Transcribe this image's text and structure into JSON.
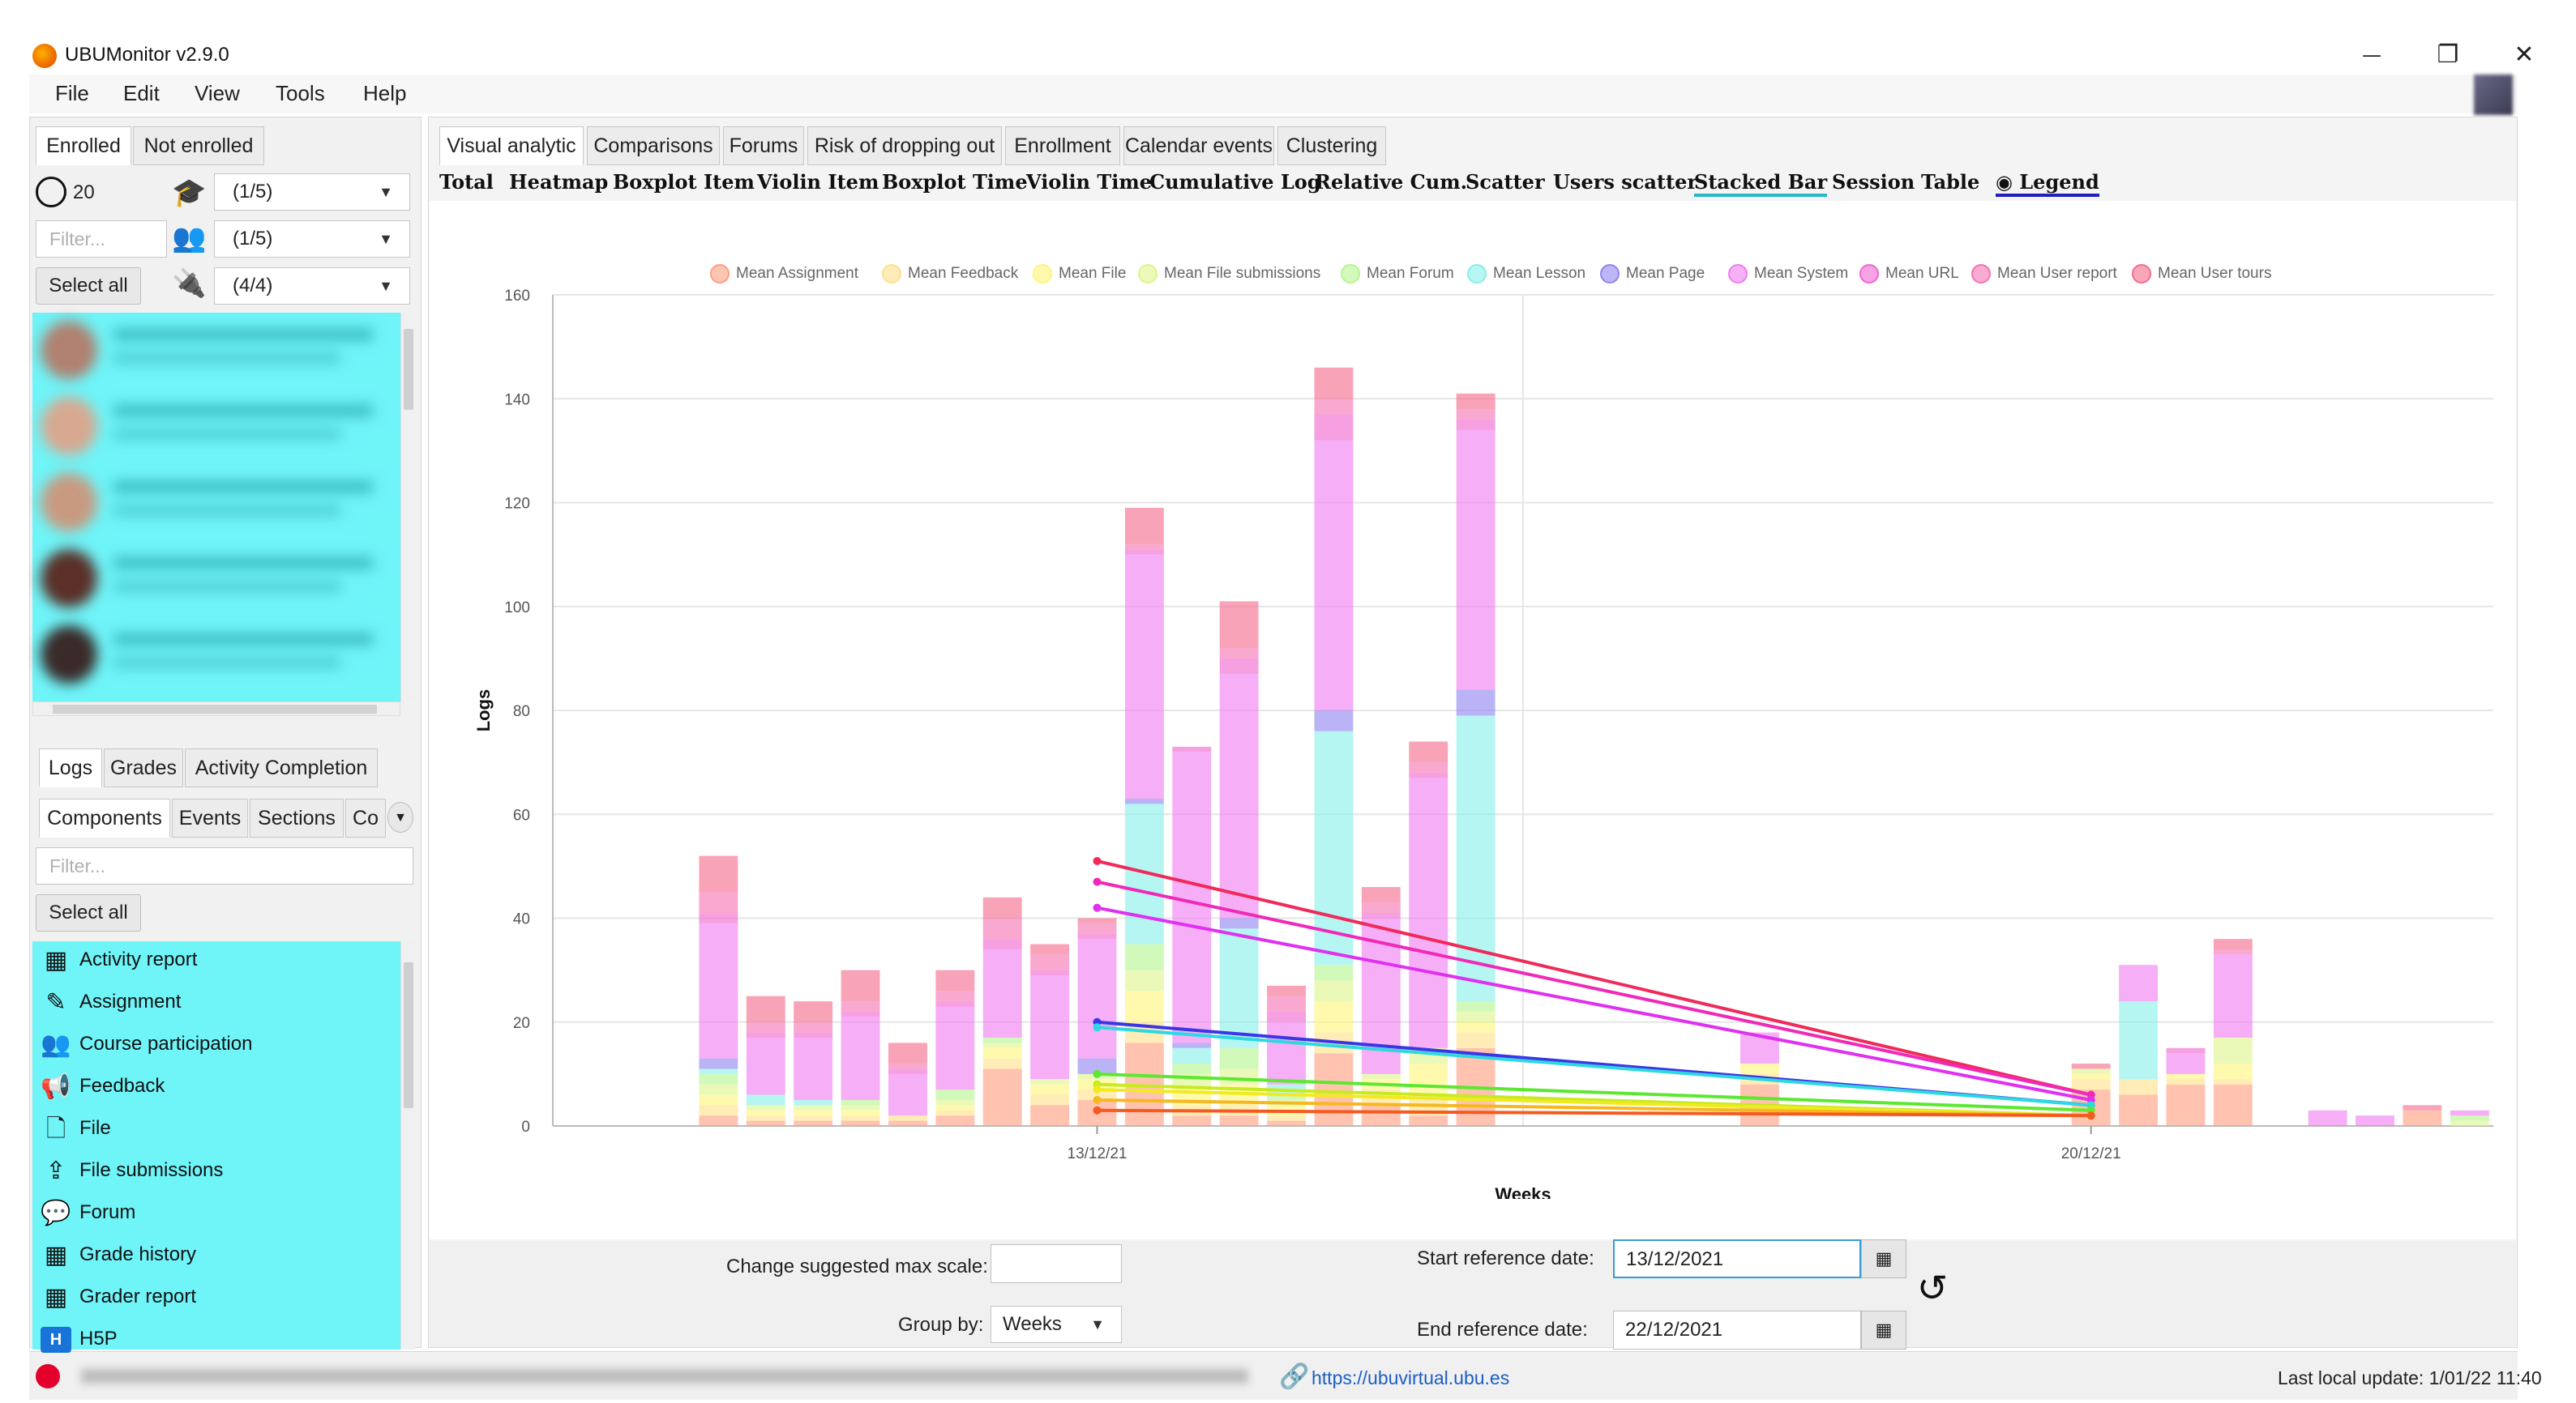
{
  "window": {
    "title": "UBUMonitor v2.9.0",
    "minimize": "—",
    "restore": "❐",
    "close": "✕"
  },
  "menu": [
    "File",
    "Edit",
    "View",
    "Tools",
    "Help"
  ],
  "left": {
    "tabs": [
      "Enrolled",
      "Not enrolled"
    ],
    "user_count": "20",
    "role_filter": "(1/5)",
    "group_filter": "(1/5)",
    "plugin_filter": "(4/4)",
    "filter_placeholder": "Filter...",
    "select_all": "Select all",
    "bottom_tabs": [
      "Logs",
      "Grades",
      "Activity Completion"
    ],
    "log_tabs": [
      "Components",
      "Events",
      "Sections",
      "Co"
    ],
    "components_filter_placeholder": "Filter...",
    "components_select_all": "Select all",
    "components": [
      {
        "label": "Activity report",
        "icon": "table-icon"
      },
      {
        "label": "Assignment",
        "icon": "assignment-icon"
      },
      {
        "label": "Course participation",
        "icon": "users-icon"
      },
      {
        "label": "Feedback",
        "icon": "megaphone-icon"
      },
      {
        "label": "File",
        "icon": "file-icon"
      },
      {
        "label": "File submissions",
        "icon": "upload-icon"
      },
      {
        "label": "Forum",
        "icon": "forum-icon"
      },
      {
        "label": "Grade history",
        "icon": "table-icon"
      },
      {
        "label": "Grader report",
        "icon": "table-icon"
      },
      {
        "label": "H5P",
        "icon": "h5p-icon"
      }
    ]
  },
  "main": {
    "tabs": [
      "Visual analytic",
      "Comparisons",
      "Forums",
      "Risk of dropping out",
      "Enrollment",
      "Calendar events",
      "Clustering"
    ],
    "subtabs": [
      "Total",
      "Heatmap",
      "Boxplot Item",
      "Violin Item",
      "Boxplot Time",
      "Violin Time",
      "Cumulative Log",
      "Relative Cum.",
      "Scatter",
      "Users scatter",
      "Stacked Bar",
      "Session",
      "Table",
      "Legend"
    ],
    "selected_subtab": "Stacked Bar"
  },
  "chart_data": {
    "type": "bar",
    "stacked": true,
    "ylabel": "Logs",
    "xlabel": "Weeks",
    "ylim": [
      0,
      160
    ],
    "yticks": [
      0,
      20,
      40,
      60,
      80,
      100,
      120,
      140,
      160
    ],
    "xticks": [
      "13/12/21",
      "20/12/21"
    ],
    "legend_position": "top",
    "grid": true,
    "series": [
      {
        "name": "Mean Assignment",
        "color": "#ff9e80"
      },
      {
        "name": "Mean Feedback",
        "color": "#ffe08a"
      },
      {
        "name": "Mean File",
        "color": "#fff57a"
      },
      {
        "name": "Mean File submissions",
        "color": "#ddf58c"
      },
      {
        "name": "Mean Forum",
        "color": "#b5f58f"
      },
      {
        "name": "Mean Lesson",
        "color": "#87f0ea"
      },
      {
        "name": "Mean Page",
        "color": "#8f86f0"
      },
      {
        "name": "Mean System",
        "color": "#f07cf0"
      },
      {
        "name": "Mean URL",
        "color": "#f066d0"
      },
      {
        "name": "Mean User report",
        "color": "#f573b2"
      },
      {
        "name": "Mean User tours",
        "color": "#f56b8c"
      }
    ],
    "bars": [
      {
        "day": -8,
        "stack": [
          2,
          2,
          2,
          2,
          2,
          1,
          2,
          26,
          2,
          4,
          7
        ]
      },
      {
        "day": -7,
        "stack": [
          1,
          1,
          1,
          1,
          0,
          2,
          0,
          11,
          1,
          2,
          5
        ]
      },
      {
        "day": -6,
        "stack": [
          1,
          1,
          1,
          1,
          0,
          1,
          0,
          12,
          1,
          2,
          4
        ]
      },
      {
        "day": -5,
        "stack": [
          1,
          1,
          1,
          1,
          1,
          0,
          0,
          16,
          1,
          2,
          6
        ]
      },
      {
        "day": -4,
        "stack": [
          1,
          1,
          0,
          0,
          0,
          0,
          0,
          8,
          1,
          1,
          4
        ]
      },
      {
        "day": -3,
        "stack": [
          2,
          1,
          1,
          1,
          2,
          0,
          0,
          16,
          1,
          2,
          4
        ]
      },
      {
        "day": -2,
        "stack": [
          11,
          2,
          2,
          1,
          1,
          0,
          0,
          17,
          2,
          4,
          4
        ]
      },
      {
        "day": -1,
        "stack": [
          4,
          2,
          2,
          1,
          0,
          0,
          0,
          20,
          1,
          3,
          2
        ]
      },
      {
        "day": 0,
        "stack": [
          5,
          2,
          2,
          1,
          0,
          0,
          3,
          23,
          1,
          2,
          1
        ]
      },
      {
        "day": 1,
        "stack": [
          16,
          4,
          6,
          4,
          5,
          27,
          1,
          47,
          1,
          1,
          7
        ]
      },
      {
        "day": 2,
        "stack": [
          2,
          2,
          3,
          3,
          2,
          3,
          1,
          56,
          1,
          0,
          0
        ]
      },
      {
        "day": 3,
        "stack": [
          2,
          2,
          4,
          3,
          4,
          23,
          2,
          47,
          3,
          2,
          9
        ]
      },
      {
        "day": 4,
        "stack": [
          1,
          1,
          2,
          1,
          1,
          2,
          0,
          12,
          2,
          3,
          2
        ]
      },
      {
        "day": 5,
        "stack": [
          14,
          4,
          6,
          4,
          3,
          45,
          4,
          52,
          5,
          3,
          6
        ]
      },
      {
        "day": 6,
        "stack": [
          4,
          3,
          2,
          1,
          0,
          0,
          0,
          30,
          1,
          2,
          3
        ]
      },
      {
        "day": 7,
        "stack": [
          2,
          4,
          6,
          3,
          0,
          0,
          0,
          52,
          1,
          2,
          4
        ]
      },
      {
        "day": 8,
        "stack": [
          15,
          3,
          2,
          2,
          2,
          55,
          5,
          50,
          2,
          2,
          3
        ]
      },
      {
        "day": 14,
        "stack": [
          8,
          2,
          2,
          0,
          0,
          0,
          0,
          6,
          0,
          0,
          0
        ]
      },
      {
        "day": 21,
        "stack": [
          7,
          2,
          1,
          1,
          0,
          0,
          0,
          0,
          0,
          0,
          1
        ]
      },
      {
        "day": 22,
        "stack": [
          6,
          3,
          0,
          0,
          0,
          15,
          0,
          7,
          0,
          0,
          0
        ]
      },
      {
        "day": 23,
        "stack": [
          8,
          1,
          1,
          0,
          0,
          0,
          0,
          4,
          1,
          0,
          0
        ]
      },
      {
        "day": 24,
        "stack": [
          8,
          1,
          3,
          5,
          0,
          0,
          0,
          16,
          0,
          1,
          2
        ]
      },
      {
        "day": 26,
        "stack": [
          0,
          0,
          0,
          0,
          0,
          0,
          0,
          3,
          0,
          0,
          0
        ]
      },
      {
        "day": 27,
        "stack": [
          0,
          0,
          0,
          0,
          0,
          0,
          0,
          2,
          0,
          0,
          0
        ]
      },
      {
        "day": 28,
        "stack": [
          3,
          0,
          0,
          0,
          0,
          0,
          0,
          0,
          0,
          0,
          1
        ]
      },
      {
        "day": 29,
        "stack": [
          0,
          0,
          0,
          1,
          1,
          0,
          0,
          1,
          0,
          0,
          0
        ]
      }
    ],
    "mean_lines": [
      {
        "name": "Mean User tours",
        "color": "#f02a5a",
        "y": [
          51,
          6
        ]
      },
      {
        "name": "Mean URL",
        "color": "#f02ab8",
        "y": [
          47,
          6
        ]
      },
      {
        "name": "Mean System",
        "color": "#e030f0",
        "y": [
          42,
          5
        ]
      },
      {
        "name": "Mean Page",
        "color": "#3a36e6",
        "y": [
          20,
          4
        ]
      },
      {
        "name": "Mean Lesson",
        "color": "#2ed8e0",
        "y": [
          19,
          4
        ]
      },
      {
        "name": "Mean Forum",
        "color": "#5ce830",
        "y": [
          10,
          3
        ]
      },
      {
        "name": "Mean File submissions",
        "color": "#c8ea20",
        "y": [
          8,
          2
        ]
      },
      {
        "name": "Mean File",
        "color": "#f2ea20",
        "y": [
          7,
          2
        ]
      },
      {
        "name": "Mean Feedback",
        "color": "#f6b820",
        "y": [
          5,
          2
        ]
      },
      {
        "name": "Mean Assignment",
        "color": "#f55a20",
        "y": [
          3,
          2
        ]
      }
    ],
    "mean_x_days": [
      0,
      21
    ]
  },
  "controls": {
    "max_scale_label": "Change suggested max scale:",
    "max_scale_value": "",
    "group_by_label": "Group by:",
    "group_by_value": "Weeks",
    "start_label": "Start reference date:",
    "start_value": "13/12/2021",
    "end_label": "End reference date:",
    "end_value": "22/12/2021"
  },
  "status": {
    "link": "https://ubuvirtual.ubu.es",
    "last_update": "Last local update: 1/01/22 11:40"
  }
}
